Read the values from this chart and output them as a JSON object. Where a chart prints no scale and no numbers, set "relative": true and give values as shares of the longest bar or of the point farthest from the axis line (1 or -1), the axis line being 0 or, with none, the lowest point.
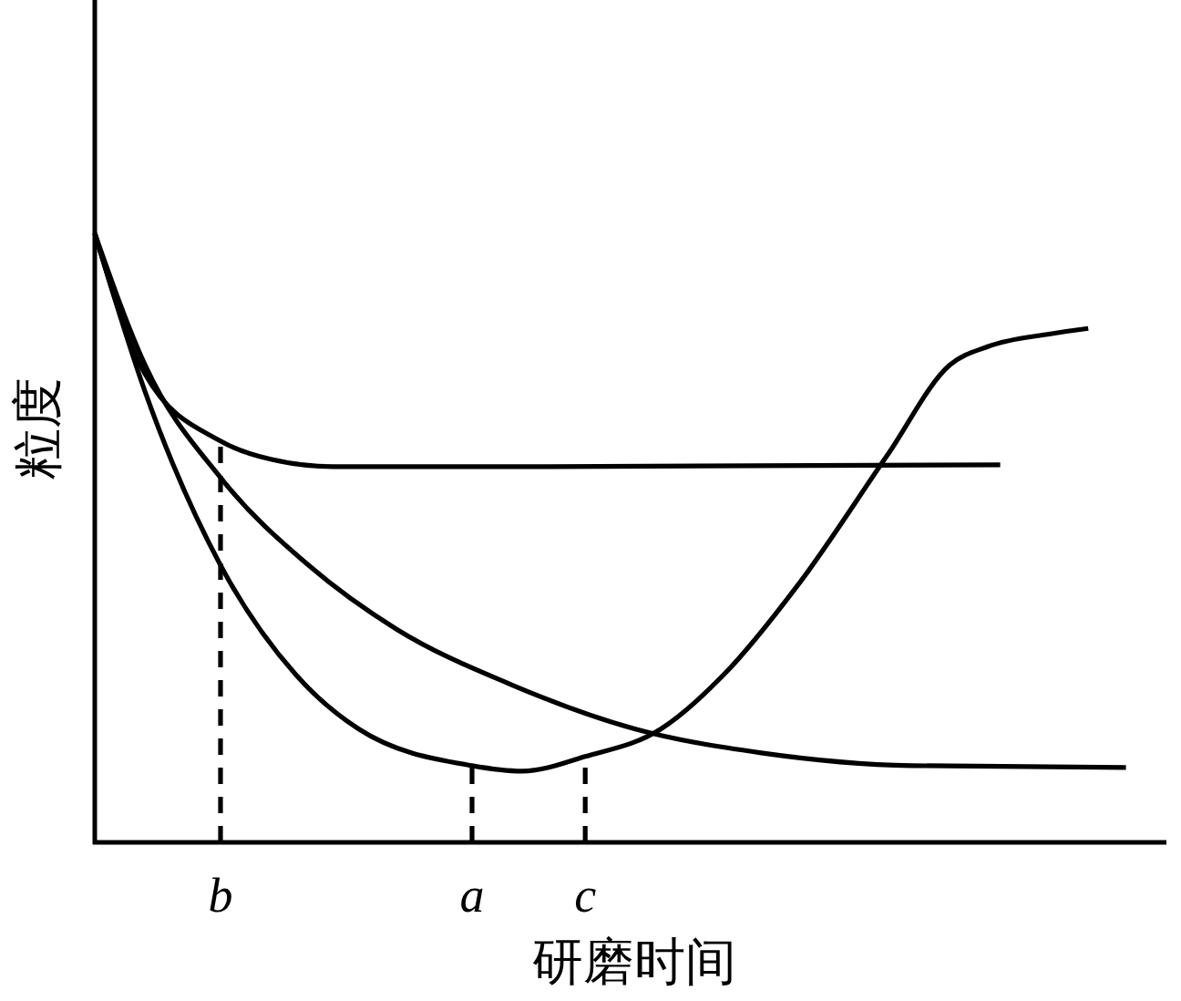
{
  "chart_data": {
    "type": "line",
    "xlabel": "研磨时间",
    "ylabel": "粒度",
    "relative": true,
    "tick_labels": "x",
    "marker": "none",
    "categories": [
      null,
      null,
      null,
      null,
      null,
      null,
      null,
      null,
      null,
      null,
      "b",
      null,
      null,
      null,
      null,
      null,
      null,
      null,
      null,
      null,
      null,
      null,
      null,
      null,
      null,
      null,
      null,
      null,
      null,
      null,
      "a",
      null,
      null,
      null,
      null,
      null,
      null,
      null,
      null,
      "c",
      null,
      null,
      null,
      null,
      null,
      null,
      null,
      null,
      null,
      null,
      null,
      null,
      null,
      null,
      null,
      null,
      null,
      null,
      null,
      null,
      null,
      null,
      null,
      null,
      null,
      null,
      null,
      null,
      null,
      null,
      null,
      null,
      null,
      null,
      null,
      null,
      null,
      null,
      null,
      null,
      null,
      null,
      null,
      null,
      null,
      null
    ],
    "ref_lines": [
      {
        "axis": "x",
        "value": "b",
        "line_style": "dashed",
        "color": "#000000"
      },
      {
        "axis": "x",
        "value": "a",
        "line_style": "dashed",
        "color": "#000000"
      },
      {
        "axis": "x",
        "value": "c",
        "line_style": "dashed",
        "color": "#000000"
      }
    ],
    "series": [
      {
        "color": "#000000",
        "line_style": "solid",
        "values": [
          1,
          null,
          null,
          null,
          0.769,
          null,
          null,
          null,
          null,
          null,
          0.659,
          null,
          null,
          null,
          0.629,
          null,
          null,
          null,
          null,
          0.617,
          null,
          null,
          null,
          null,
          null,
          null,
          null,
          null,
          null,
          null,
          null,
          null,
          null,
          null,
          null,
          null,
          0.617,
          null,
          null,
          null,
          null,
          null,
          null,
          null,
          null,
          null,
          null,
          null,
          null,
          null,
          null,
          null,
          null,
          null,
          null,
          null,
          null,
          null,
          null,
          null,
          null,
          null,
          null,
          null,
          null,
          null,
          null,
          null,
          null,
          null,
          null,
          null,
          0.62,
          null,
          null,
          null,
          null,
          null,
          null,
          null,
          null,
          null,
          null,
          null,
          null,
          null
        ]
      },
      {
        "color": "#000000",
        "line_style": "solid",
        "values": [
          1,
          null,
          null,
          null,
          0.784,
          null,
          null,
          null,
          null,
          null,
          0.599,
          null,
          null,
          null,
          null,
          null,
          null,
          0.455,
          null,
          null,
          null,
          null,
          null,
          null,
          0.35,
          null,
          null,
          null,
          null,
          null,
          null,
          null,
          null,
          0.26,
          null,
          null,
          null,
          null,
          null,
          null,
          null,
          null,
          null,
          0.186,
          null,
          null,
          null,
          null,
          null,
          null,
          null,
          null,
          null,
          0.147,
          null,
          null,
          null,
          null,
          null,
          null,
          null,
          null,
          null,
          null,
          null,
          0.126,
          null,
          null,
          null,
          null,
          null,
          null,
          null,
          null,
          null,
          null,
          null,
          null,
          null,
          null,
          null,
          null,
          0.123,
          null,
          null,
          null
        ]
      },
      {
        "color": "#000000",
        "line_style": "solid",
        "values": [
          1,
          null,
          null,
          null,
          0.74,
          null,
          null,
          null,
          null,
          null,
          0.455,
          null,
          null,
          null,
          null,
          null,
          0.275,
          null,
          null,
          null,
          null,
          0.186,
          null,
          null,
          null,
          null,
          null,
          null,
          null,
          null,
          0.126,
          null,
          null,
          null,
          0.117,
          null,
          null,
          null,
          null,
          0.141,
          null,
          null,
          null,
          null,
          null,
          0.186,
          null,
          null,
          null,
          null,
          0.275,
          null,
          null,
          null,
          null,
          null,
          0.425,
          null,
          null,
          null,
          null,
          null,
          null,
          0.635,
          null,
          null,
          null,
          null,
          0.784,
          null,
          null,
          0.814,
          null,
          null,
          null,
          null,
          0.835,
          null,
          null,
          0.844,
          null,
          null,
          null,
          null,
          null,
          null
        ]
      }
    ]
  }
}
